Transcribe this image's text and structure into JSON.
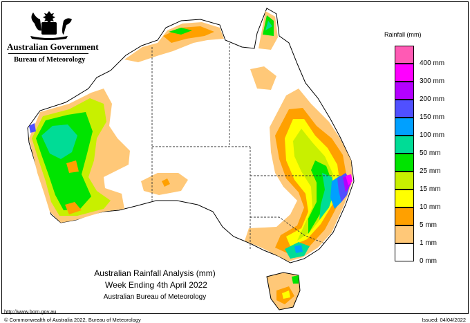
{
  "header": {
    "government": "Australian Government",
    "bureau": "Bureau of Meteorology"
  },
  "map": {
    "title_line1": "Australian Rainfall Analysis (mm)",
    "title_line2": "Week Ending 4th April 2022",
    "title_line3": "Australian Bureau of Meteorology"
  },
  "legend": {
    "title": "Rainfall (mm)",
    "items": [
      {
        "label": "",
        "color": "#ff5ab4"
      },
      {
        "label": "400 mm",
        "color": "#ff00ff"
      },
      {
        "label": "300 mm",
        "color": "#b400ff"
      },
      {
        "label": "200 mm",
        "color": "#5050ff"
      },
      {
        "label": "150 mm",
        "color": "#00a0ff"
      },
      {
        "label": "100 mm",
        "color": "#00dc96"
      },
      {
        "label": "50 mm",
        "color": "#00e400"
      },
      {
        "label": "25 mm",
        "color": "#c8f000"
      },
      {
        "label": "15 mm",
        "color": "#ffff00"
      },
      {
        "label": "10 mm",
        "color": "#ffa000"
      },
      {
        "label": "5 mm",
        "color": "#ffc878"
      },
      {
        "label": "1 mm",
        "color": "#ffffff"
      },
      {
        "label": "0 mm",
        "color": ""
      }
    ]
  },
  "footer": {
    "url": "http://www.bom.gov.au",
    "copyright": "© Commonwealth of Australia 2022, Bureau of Meteorology",
    "issued": "Issued: 04/04/2022"
  }
}
